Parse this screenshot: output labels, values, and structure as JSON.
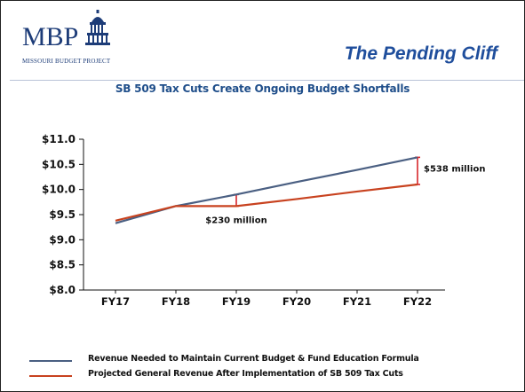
{
  "header": {
    "logo_text": "MBP",
    "logo_subtext": "MISSOURI BUDGET PROJECT",
    "slide_title": "The Pending Cliff"
  },
  "chart_data": {
    "type": "line",
    "title": "SB 509 Tax Cuts Create Ongoing Budget Shortfalls",
    "xlabel": "",
    "ylabel": "",
    "categories": [
      "FY17",
      "FY18",
      "FY19",
      "FY20",
      "FY21",
      "FY22"
    ],
    "y_tick_labels": [
      "$11.0",
      "$10.5",
      "$10.0",
      "$9.5",
      "$9.0",
      "$8.5",
      "$8.0"
    ],
    "ylim": [
      8.0,
      11.0
    ],
    "grid": false,
    "series": [
      {
        "name": "Revenue Needed to Maintain Current Budget & Fund Education Formula",
        "color": "#4a5f82",
        "values": [
          9.33,
          9.67,
          9.9,
          10.15,
          10.39,
          10.64
        ]
      },
      {
        "name": "Projected General Revenue After Implementation of SB 509 Tax Cuts",
        "color": "#c8421f",
        "values": [
          9.38,
          9.67,
          9.67,
          9.81,
          9.96,
          10.1
        ]
      }
    ],
    "annotations": [
      {
        "text": "$230 million",
        "category": "FY19",
        "from": 9.67,
        "to": 9.9
      },
      {
        "text": "$538 million",
        "category": "FY22",
        "from": 10.1,
        "to": 10.64
      }
    ],
    "legend_position": "bottom-left"
  }
}
